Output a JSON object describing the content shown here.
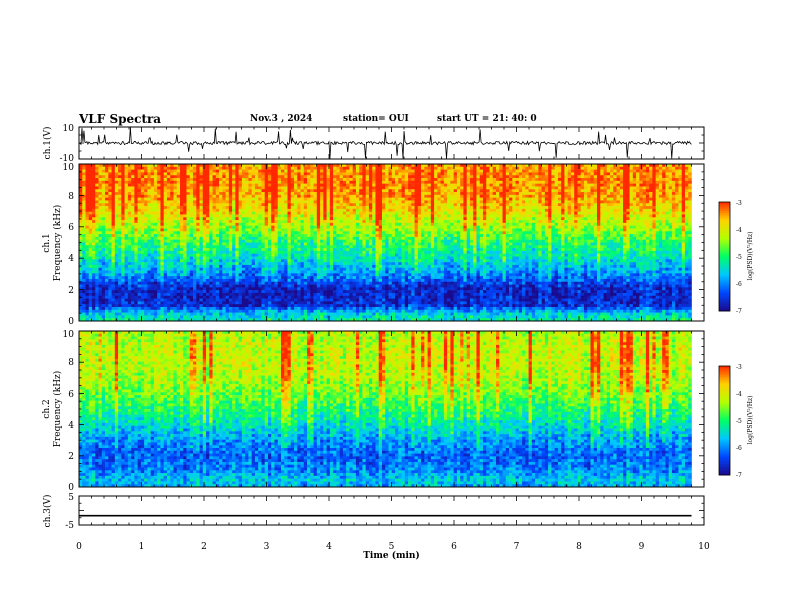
{
  "header": {
    "title": "VLF Spectra",
    "date": "Nov.3 , 2024",
    "station": "station= OUI",
    "start_ut": "start UT = 21: 40: 0"
  },
  "colors": {
    "colormap": [
      "#1a0a8c",
      "#0046ff",
      "#00c8ff",
      "#00ff64",
      "#b4ff00",
      "#ffd200",
      "#ff2800"
    ],
    "trace": "#000000",
    "axis": "#000000"
  },
  "chart_data": [
    {
      "id": "ch1-waveform",
      "type": "line",
      "ylabel": "ch.1(V)",
      "ylim": [
        -10,
        10
      ],
      "yticks": [
        "10",
        "-10"
      ],
      "xlim": [
        0,
        10
      ],
      "data_end_min": 9.8,
      "signal": "noisy waveform centred near 0 V with ~±1 V noise and spikes up to ±10 V"
    },
    {
      "id": "ch1-spectrogram",
      "type": "heatmap",
      "ylabel": "ch.1",
      "ylabel2": "Frequency (kHz)",
      "ylim": [
        0,
        10
      ],
      "yticks": [
        "0",
        "2",
        "4",
        "6",
        "8",
        "10"
      ],
      "xlim": [
        0,
        10
      ],
      "data_end_min": 9.8,
      "colorbar": {
        "label": "log(PSD)(V²/Hz)",
        "range": [
          -7,
          -3
        ],
        "ticks": [
          "-3",
          "-4",
          "-5",
          "-6",
          "-7"
        ]
      },
      "level_profile": [
        {
          "freq_khz": 0.0,
          "log_psd": -5.2
        },
        {
          "freq_khz": 0.5,
          "log_psd": -5.6
        },
        {
          "freq_khz": 1.0,
          "log_psd": -6.6
        },
        {
          "freq_khz": 2.0,
          "log_psd": -6.7
        },
        {
          "freq_khz": 3.0,
          "log_psd": -6.0
        },
        {
          "freq_khz": 4.0,
          "log_psd": -5.4
        },
        {
          "freq_khz": 5.0,
          "log_psd": -5.0
        },
        {
          "freq_khz": 6.0,
          "log_psd": -4.4
        },
        {
          "freq_khz": 7.0,
          "log_psd": -3.9
        },
        {
          "freq_khz": 8.0,
          "log_psd": -3.5
        },
        {
          "freq_khz": 9.0,
          "log_psd": -3.4
        },
        {
          "freq_khz": 10.0,
          "log_psd": -3.5
        }
      ]
    },
    {
      "id": "ch2-spectrogram",
      "type": "heatmap",
      "ylabel": "ch.2",
      "ylabel2": "Frequency (kHz)",
      "ylim": [
        0,
        10
      ],
      "yticks": [
        "0",
        "2",
        "4",
        "6",
        "8",
        "10"
      ],
      "xlim": [
        0,
        10
      ],
      "data_end_min": 9.8,
      "colorbar": {
        "label": "log(PSD)(V²/Hz)",
        "range": [
          -7,
          -3
        ],
        "ticks": [
          "-3",
          "-4",
          "-5",
          "-6",
          "-7"
        ]
      },
      "level_profile": [
        {
          "freq_khz": 0.0,
          "log_psd": -5.8
        },
        {
          "freq_khz": 0.5,
          "log_psd": -5.6
        },
        {
          "freq_khz": 1.0,
          "log_psd": -6.0
        },
        {
          "freq_khz": 2.0,
          "log_psd": -6.2
        },
        {
          "freq_khz": 3.0,
          "log_psd": -5.9
        },
        {
          "freq_khz": 4.0,
          "log_psd": -5.4
        },
        {
          "freq_khz": 5.0,
          "log_psd": -5.0
        },
        {
          "freq_khz": 6.0,
          "log_psd": -4.6
        },
        {
          "freq_khz": 7.0,
          "log_psd": -4.3
        },
        {
          "freq_khz": 8.0,
          "log_psd": -4.2
        },
        {
          "freq_khz": 9.0,
          "log_psd": -4.2
        },
        {
          "freq_khz": 10.0,
          "log_psd": -4.3
        }
      ]
    },
    {
      "id": "ch3-waveform",
      "type": "line",
      "ylabel": "ch.3(V)",
      "ylim": [
        -5,
        5
      ],
      "yticks": [
        "5",
        "-5"
      ],
      "xlim": [
        0,
        10
      ],
      "data_end_min": 9.8,
      "constant_value": -1.8
    }
  ],
  "xaxis": {
    "label": "Time (min)",
    "ticks": [
      "0",
      "1",
      "2",
      "3",
      "4",
      "5",
      "6",
      "7",
      "8",
      "9",
      "10"
    ]
  }
}
